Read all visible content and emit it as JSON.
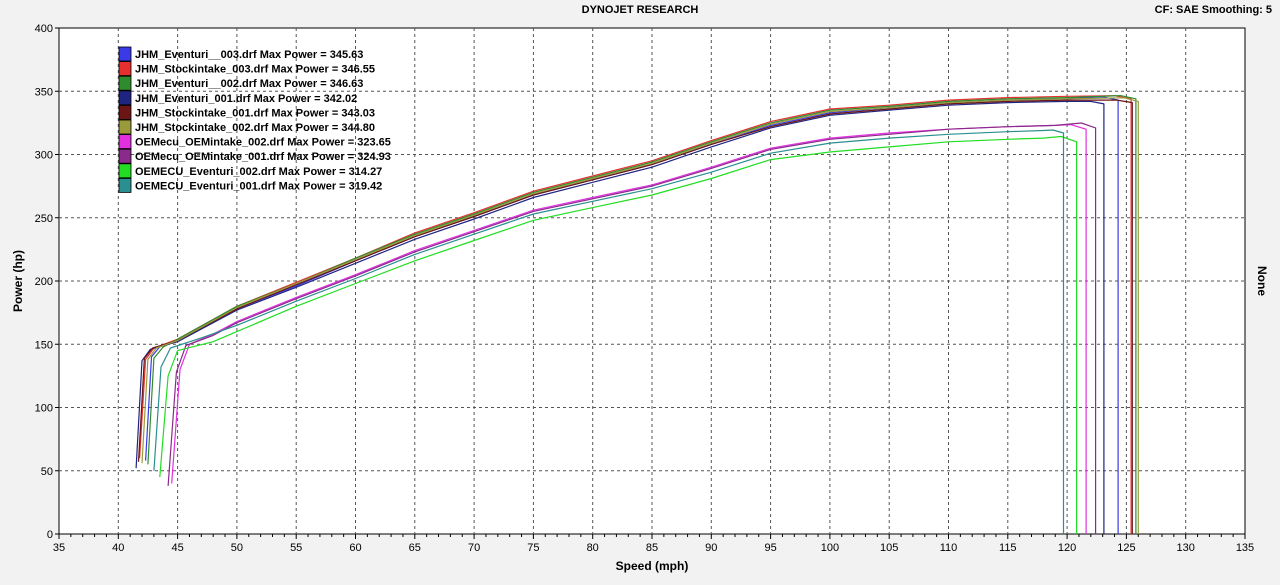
{
  "header": {
    "title": "DYNOJET RESEARCH",
    "settings": "CF: SAE  Smoothing: 5"
  },
  "chart_data": {
    "type": "line",
    "title": "DYNOJET RESEARCH",
    "xlabel": "Speed (mph)",
    "ylabel": "Power (hp)",
    "right_label": "None",
    "xlim": [
      35,
      135
    ],
    "ylim": [
      0,
      400
    ],
    "x_ticks": [
      35,
      40,
      45,
      50,
      55,
      60,
      65,
      70,
      75,
      80,
      85,
      90,
      95,
      100,
      105,
      110,
      115,
      120,
      125,
      130,
      135
    ],
    "y_ticks": [
      0,
      50,
      100,
      150,
      200,
      250,
      300,
      350,
      400
    ],
    "grid": true,
    "legend_position": "top-left",
    "series": [
      {
        "name": "JHM_Eventuri__003.drf Max Power = 345.63",
        "color": "#3a3ae6",
        "x": [
          42.3,
          42.8,
          43.5,
          45,
          50,
          55,
          60,
          65,
          70,
          75,
          80,
          85,
          90,
          95,
          100,
          105,
          110,
          115,
          120,
          123,
          124.3,
          124.3
        ],
        "y": [
          58,
          140,
          148,
          153,
          178,
          196,
          216,
          235,
          251,
          268,
          280,
          292,
          308,
          323,
          333,
          337,
          341,
          343,
          344,
          345.6,
          343,
          0
        ]
      },
      {
        "name": "JHM_Stockintake_003.drf Max Power = 346.55",
        "color": "#e63030",
        "x": [
          41.8,
          42.3,
          43,
          45,
          50,
          55,
          60,
          65,
          70,
          75,
          80,
          85,
          90,
          95,
          100,
          105,
          110,
          115,
          120,
          124,
          125.4,
          125.4
        ],
        "y": [
          60,
          138,
          147,
          154,
          180,
          199,
          218,
          238,
          254,
          271,
          283,
          295,
          311,
          326,
          336,
          339,
          343,
          345,
          346,
          346.5,
          344,
          0
        ]
      },
      {
        "name": "JHM_Eventuri__002.drf Max Power = 346.63",
        "color": "#2e8b2e",
        "x": [
          42.5,
          43,
          43.8,
          45,
          50,
          55,
          60,
          65,
          70,
          75,
          80,
          85,
          90,
          95,
          100,
          105,
          110,
          115,
          120,
          124.5,
          125.8,
          125.8
        ],
        "y": [
          55,
          139,
          148,
          154,
          180,
          198,
          218,
          237,
          253,
          270,
          282,
          294,
          310,
          325,
          335,
          338,
          342,
          344,
          345,
          346.6,
          344,
          0
        ]
      },
      {
        "name": "JHM_Eventuri_001.drf Max Power = 342.02",
        "color": "#1f2480",
        "x": [
          41.5,
          42,
          42.7,
          45,
          50,
          55,
          60,
          65,
          70,
          75,
          80,
          85,
          90,
          95,
          100,
          105,
          110,
          115,
          120,
          122,
          123.1,
          123.1
        ],
        "y": [
          52,
          137,
          146,
          152,
          177,
          195,
          214,
          233,
          249,
          266,
          278,
          290,
          306,
          321,
          331,
          335,
          339,
          341,
          342,
          342,
          340,
          0
        ]
      },
      {
        "name": "JHM_Stockintake_001.drf Max Power = 343.03",
        "color": "#6b1515",
        "x": [
          41.7,
          42.2,
          42.9,
          45,
          50,
          55,
          60,
          65,
          70,
          75,
          80,
          85,
          90,
          95,
          100,
          105,
          110,
          115,
          120,
          124.2,
          125.5,
          125.5
        ],
        "y": [
          57,
          139,
          147,
          153,
          178,
          197,
          216,
          235,
          251,
          268,
          280,
          292,
          308,
          322,
          332,
          336,
          340,
          342,
          343,
          343,
          341,
          0
        ]
      },
      {
        "name": "JHM_Stockintake_002.drf Max Power = 344.80",
        "color": "#9a9a3a",
        "x": [
          42,
          42.5,
          43.2,
          45,
          50,
          55,
          60,
          65,
          70,
          75,
          80,
          85,
          90,
          95,
          100,
          105,
          110,
          115,
          120,
          124.8,
          126,
          126
        ],
        "y": [
          56,
          138,
          147,
          153,
          179,
          198,
          217,
          236,
          252,
          269,
          281,
          293,
          309,
          324,
          334,
          337,
          341,
          343,
          344,
          344.8,
          342,
          0
        ]
      },
      {
        "name": "OEMecu_OEMintake_002.drf Max Power = 323.65",
        "color": "#e030e0",
        "x": [
          44.5,
          45.2,
          46,
          48,
          50,
          55,
          60,
          65,
          70,
          75,
          80,
          85,
          90,
          95,
          100,
          105,
          110,
          115,
          119,
          120.3,
          121.6,
          121.6
        ],
        "y": [
          40,
          130,
          150,
          158,
          168,
          187,
          205,
          224,
          240,
          256,
          266,
          276,
          290,
          305,
          313,
          317,
          320,
          322,
          323,
          323.6,
          320,
          0
        ]
      },
      {
        "name": "OEMecu_OEMintake_001.drf Max Power = 324.93",
        "color": "#8a2a8a",
        "x": [
          44.2,
          44.9,
          45.7,
          48,
          50,
          55,
          60,
          65,
          70,
          75,
          80,
          85,
          90,
          95,
          100,
          105,
          110,
          115,
          119,
          121.2,
          122.4,
          122.4
        ],
        "y": [
          38,
          128,
          149,
          157,
          167,
          186,
          204,
          223,
          239,
          255,
          265,
          275,
          289,
          304,
          312,
          316,
          320,
          322,
          323,
          324.9,
          321,
          0
        ]
      },
      {
        "name": "OEMECU_Eventuri_002.drf Max Power = 314.27",
        "color": "#22dd22",
        "x": [
          43.5,
          44.2,
          45,
          48,
          50,
          55,
          60,
          65,
          70,
          75,
          80,
          85,
          90,
          95,
          100,
          105,
          110,
          115,
          118,
          119.5,
          120.8,
          120.8
        ],
        "y": [
          45,
          125,
          145,
          152,
          160,
          180,
          198,
          216,
          232,
          248,
          258,
          268,
          281,
          296,
          302,
          306,
          310,
          312,
          313,
          314.2,
          310,
          0
        ]
      },
      {
        "name": "OEMECU_Eventuri_001.drf Max Power = 319.42",
        "color": "#2a8f8f",
        "x": [
          43,
          43.6,
          44.4,
          47,
          50,
          55,
          60,
          65,
          70,
          75,
          80,
          85,
          90,
          95,
          100,
          105,
          110,
          115,
          118,
          118.8,
          119.7,
          119.7
        ],
        "y": [
          50,
          132,
          147,
          155,
          165,
          184,
          202,
          221,
          237,
          253,
          263,
          273,
          286,
          301,
          309,
          313,
          316,
          318,
          319,
          319.4,
          317,
          0
        ]
      }
    ]
  }
}
